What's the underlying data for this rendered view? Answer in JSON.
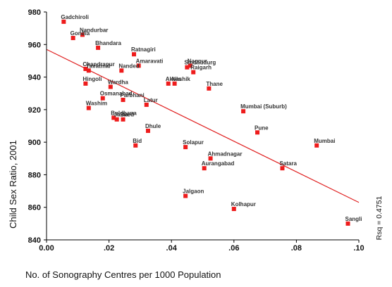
{
  "chart_data": {
    "type": "scatter",
    "title": "",
    "xlabel": "No. of Sonography Centres per 1000 Population",
    "ylabel": "Child Sex Ratio, 2001",
    "xlim": [
      0.0,
      0.1
    ],
    "ylim": [
      840,
      980
    ],
    "x_ticks": [
      0.0,
      0.02,
      0.04,
      0.06,
      0.08,
      0.1
    ],
    "x_tick_labels": [
      "0.00",
      ".02",
      ".04",
      ".06",
      ".08",
      ".10"
    ],
    "y_ticks": [
      840,
      860,
      880,
      900,
      920,
      940,
      960,
      980
    ],
    "y_tick_labels": [
      "840",
      "860",
      "880",
      "900",
      "920",
      "940",
      "960",
      "980"
    ],
    "grid": false,
    "marker_color": "#ee1c1c",
    "line_color": "#e02020",
    "fit_line": {
      "x": [
        0.0,
        0.1
      ],
      "y": [
        957,
        863
      ]
    },
    "annotation": "Rsq = 0.4751",
    "points": [
      {
        "label": "Gadchiroli",
        "x": 0.0055,
        "y": 974
      },
      {
        "label": "Nandurbar",
        "x": 0.0115,
        "y": 966
      },
      {
        "label": "Gondia",
        "x": 0.0085,
        "y": 964
      },
      {
        "label": "Bhandara",
        "x": 0.0165,
        "y": 958
      },
      {
        "label": "Ratnagiri",
        "x": 0.028,
        "y": 954
      },
      {
        "label": "Amaravati",
        "x": 0.0295,
        "y": 947
      },
      {
        "label": "Nagpur",
        "x": 0.046,
        "y": 947
      },
      {
        "label": "Sindhudurg",
        "x": 0.045,
        "y": 946
      },
      {
        "label": "Raigarh",
        "x": 0.047,
        "y": 943
      },
      {
        "label": "Chandrapur",
        "x": 0.0125,
        "y": 945
      },
      {
        "label": "Yavatmal",
        "x": 0.0135,
        "y": 944
      },
      {
        "label": "Nanded",
        "x": 0.024,
        "y": 944
      },
      {
        "label": "Hingoli",
        "x": 0.0125,
        "y": 936
      },
      {
        "label": "Wardha",
        "x": 0.0205,
        "y": 934
      },
      {
        "label": "Akola",
        "x": 0.039,
        "y": 936
      },
      {
        "label": "Nashik",
        "x": 0.041,
        "y": 936
      },
      {
        "label": "Thane",
        "x": 0.052,
        "y": 933
      },
      {
        "label": "Osmanabad",
        "x": 0.018,
        "y": 927
      },
      {
        "label": "Parbhani",
        "x": 0.0245,
        "y": 926
      },
      {
        "label": "Latur",
        "x": 0.032,
        "y": 923
      },
      {
        "label": "Washim",
        "x": 0.0135,
        "y": 921
      },
      {
        "label": "Mumbai (Suburb)",
        "x": 0.063,
        "y": 919
      },
      {
        "label": "Buldhana",
        "x": 0.0215,
        "y": 915
      },
      {
        "label": "Jalna",
        "x": 0.0225,
        "y": 914
      },
      {
        "label": "Beed",
        "x": 0.0245,
        "y": 914
      },
      {
        "label": "Dhule",
        "x": 0.0325,
        "y": 907
      },
      {
        "label": "Pune",
        "x": 0.0675,
        "y": 906
      },
      {
        "label": "Bid",
        "x": 0.0285,
        "y": 898
      },
      {
        "label": "Solapur",
        "x": 0.0445,
        "y": 897
      },
      {
        "label": "Mumbai",
        "x": 0.0865,
        "y": 898
      },
      {
        "label": "Ahmadnagar",
        "x": 0.0525,
        "y": 890
      },
      {
        "label": "Aurangabad",
        "x": 0.0505,
        "y": 884
      },
      {
        "label": "Satara",
        "x": 0.0755,
        "y": 884
      },
      {
        "label": "Jalgaon",
        "x": 0.0445,
        "y": 867
      },
      {
        "label": "Kolhapur",
        "x": 0.06,
        "y": 859
      },
      {
        "label": "Sangli",
        "x": 0.0965,
        "y": 850
      }
    ]
  }
}
